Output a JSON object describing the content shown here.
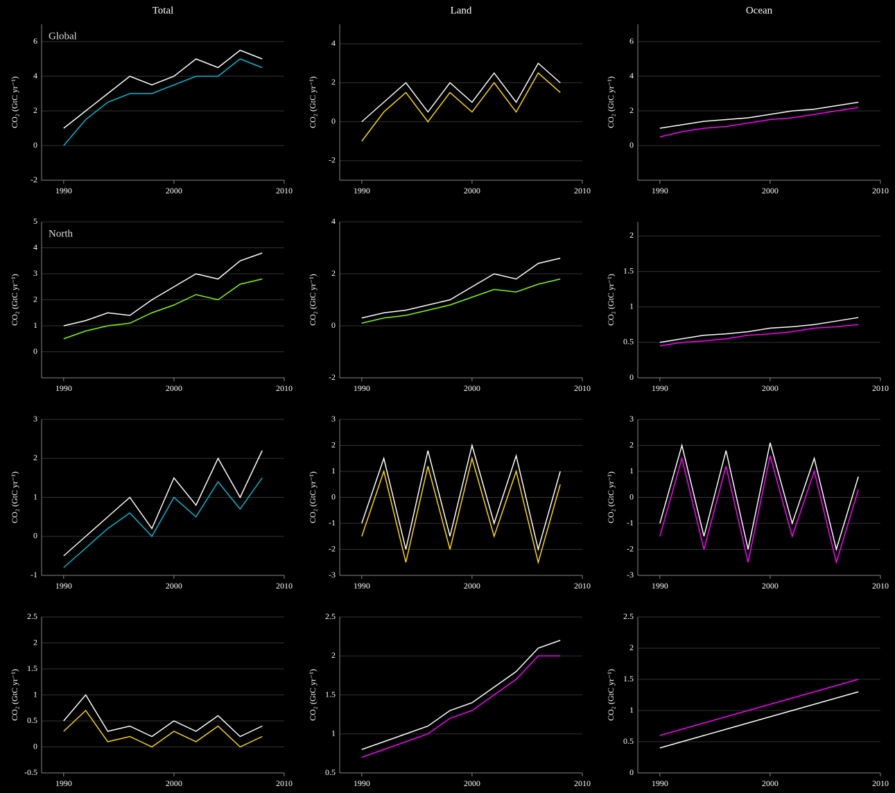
{
  "column_titles": [
    "Total",
    "Land",
    "Ocean"
  ],
  "row_labels": [
    "Global",
    "North"
  ],
  "chart_data": [
    {
      "type": "line",
      "ylabel": "CO₂ (GtC yr⁻¹)",
      "x": [
        1990,
        1992,
        1994,
        1996,
        1998,
        2000,
        2002,
        2004,
        2006,
        2008
      ],
      "xlim": [
        1988,
        2010
      ],
      "xticks": [
        1990,
        2000,
        2010
      ],
      "ylim": [
        -2,
        7
      ],
      "yticks": [
        -2,
        0,
        2,
        4,
        6
      ],
      "series": [
        {
          "color": "#ffffff",
          "values": [
            1,
            2,
            3,
            4,
            3.5,
            4,
            5,
            4.5,
            5.5,
            5
          ]
        },
        {
          "color": "#00bcd4",
          "values": [
            0,
            1.5,
            2.5,
            3,
            3,
            3.5,
            4,
            4,
            5,
            4.5
          ]
        }
      ]
    },
    {
      "type": "line",
      "ylabel": "CO₂ (GtC yr⁻¹)",
      "x": [
        1990,
        1992,
        1994,
        1996,
        1998,
        2000,
        2002,
        2004,
        2006,
        2008
      ],
      "xlim": [
        1988,
        2010
      ],
      "xticks": [
        1990,
        2000,
        2010
      ],
      "ylim": [
        -3,
        5
      ],
      "yticks": [
        -2,
        0,
        2,
        4
      ],
      "series": [
        {
          "color": "#ffffff",
          "values": [
            0,
            1,
            2,
            0.5,
            2,
            1,
            2.5,
            1,
            3,
            2
          ]
        },
        {
          "color": "#ffd700",
          "values": [
            -1,
            0.5,
            1.5,
            0,
            1.5,
            0.5,
            2,
            0.5,
            2.5,
            1.5
          ]
        }
      ]
    },
    {
      "type": "line",
      "ylabel": "CO₂ (GtC yr⁻¹)",
      "x": [
        1990,
        1992,
        1994,
        1996,
        1998,
        2000,
        2002,
        2004,
        2006,
        2008
      ],
      "xlim": [
        1988,
        2010
      ],
      "xticks": [
        1990,
        2000,
        2010
      ],
      "ylim": [
        -2,
        7
      ],
      "yticks": [
        0,
        2,
        4,
        6
      ],
      "series": [
        {
          "color": "#ffffff",
          "values": [
            1,
            1.2,
            1.4,
            1.5,
            1.6,
            1.8,
            2,
            2.1,
            2.3,
            2.5
          ]
        },
        {
          "color": "#ff00ff",
          "values": [
            0.5,
            0.8,
            1,
            1.1,
            1.3,
            1.5,
            1.6,
            1.8,
            2,
            2.2
          ]
        }
      ]
    },
    {
      "type": "line",
      "ylabel": "CO₂ (GtC yr⁻¹)",
      "x": [
        1990,
        1992,
        1994,
        1996,
        1998,
        2000,
        2002,
        2004,
        2006,
        2008
      ],
      "xlim": [
        1988,
        2010
      ],
      "xticks": [
        1990,
        2000,
        2010
      ],
      "ylim": [
        -1,
        5
      ],
      "yticks": [
        0,
        1,
        2,
        3,
        4,
        5
      ],
      "series": [
        {
          "color": "#ffffff",
          "values": [
            1,
            1.2,
            1.5,
            1.4,
            2,
            2.5,
            3,
            2.8,
            3.5,
            3.8
          ]
        },
        {
          "color": "#7fff00",
          "values": [
            0.5,
            0.8,
            1,
            1.1,
            1.5,
            1.8,
            2.2,
            2,
            2.6,
            2.8
          ]
        }
      ]
    },
    {
      "type": "line",
      "ylabel": "CO₂ (GtC yr⁻¹)",
      "x": [
        1990,
        1992,
        1994,
        1996,
        1998,
        2000,
        2002,
        2004,
        2006,
        2008
      ],
      "xlim": [
        1988,
        2010
      ],
      "xticks": [
        1990,
        2000,
        2010
      ],
      "ylim": [
        -2,
        4
      ],
      "yticks": [
        -2,
        0,
        2,
        4
      ],
      "series": [
        {
          "color": "#ffffff",
          "values": [
            0.3,
            0.5,
            0.6,
            0.8,
            1,
            1.5,
            2,
            1.8,
            2.4,
            2.6
          ]
        },
        {
          "color": "#7fff00",
          "values": [
            0.1,
            0.3,
            0.4,
            0.6,
            0.8,
            1.1,
            1.4,
            1.3,
            1.6,
            1.8
          ]
        }
      ]
    },
    {
      "type": "line",
      "ylabel": "CO₂ (GtC yr⁻¹)",
      "x": [
        1990,
        1992,
        1994,
        1996,
        1998,
        2000,
        2002,
        2004,
        2006,
        2008
      ],
      "xlim": [
        1988,
        2010
      ],
      "xticks": [
        1990,
        2000,
        2010
      ],
      "ylim": [
        0,
        2.2
      ],
      "yticks": [
        0,
        0.5,
        1,
        1.5,
        2
      ],
      "series": [
        {
          "color": "#ffffff",
          "values": [
            0.5,
            0.55,
            0.6,
            0.62,
            0.65,
            0.7,
            0.72,
            0.75,
            0.8,
            0.85
          ]
        },
        {
          "color": "#ff00ff",
          "values": [
            0.45,
            0.5,
            0.52,
            0.55,
            0.6,
            0.62,
            0.65,
            0.7,
            0.72,
            0.75
          ]
        }
      ]
    },
    {
      "type": "line",
      "ylabel": "CO₂ (GtC yr⁻¹)",
      "x": [
        1990,
        1992,
        1994,
        1996,
        1998,
        2000,
        2002,
        2004,
        2006,
        2008
      ],
      "xlim": [
        1988,
        2010
      ],
      "xticks": [
        1990,
        2000,
        2010
      ],
      "ylim": [
        -1,
        3
      ],
      "yticks": [
        -1,
        0,
        1,
        2,
        3
      ],
      "series": [
        {
          "color": "#ffffff",
          "values": [
            -0.5,
            0,
            0.5,
            1,
            0.2,
            1.5,
            0.8,
            2,
            1,
            2.2
          ]
        },
        {
          "color": "#00bcd4",
          "values": [
            -0.8,
            -0.3,
            0.2,
            0.6,
            0,
            1,
            0.5,
            1.4,
            0.7,
            1.5
          ]
        }
      ]
    },
    {
      "type": "line",
      "ylabel": "CO₂ (GtC yr⁻¹)",
      "x": [
        1990,
        1992,
        1994,
        1996,
        1998,
        2000,
        2002,
        2004,
        2006,
        2008
      ],
      "xlim": [
        1988,
        2010
      ],
      "xticks": [
        1990,
        2000,
        2010
      ],
      "ylim": [
        -3,
        3
      ],
      "yticks": [
        -3,
        -2,
        -1,
        0,
        1,
        2,
        3
      ],
      "series": [
        {
          "color": "#ffffff",
          "values": [
            -1,
            1.5,
            -2,
            1.8,
            -1.5,
            2,
            -1,
            1.6,
            -2,
            1
          ]
        },
        {
          "color": "#ffd700",
          "values": [
            -1.5,
            1,
            -2.5,
            1.2,
            -2,
            1.5,
            -1.5,
            1,
            -2.5,
            0.5
          ]
        }
      ]
    },
    {
      "type": "line",
      "ylabel": "CO₂ (GtC yr⁻¹)",
      "x": [
        1990,
        1992,
        1994,
        1996,
        1998,
        2000,
        2002,
        2004,
        2006,
        2008
      ],
      "xlim": [
        1988,
        2010
      ],
      "xticks": [
        1990,
        2000,
        2010
      ],
      "ylim": [
        -3,
        3
      ],
      "yticks": [
        -3,
        -2,
        -1,
        0,
        1,
        2,
        3
      ],
      "series": [
        {
          "color": "#ffffff",
          "values": [
            -1,
            2,
            -1.5,
            1.8,
            -2,
            2.1,
            -1,
            1.5,
            -2,
            0.8
          ]
        },
        {
          "color": "#ff00ff",
          "values": [
            -1.5,
            1.5,
            -2,
            1.2,
            -2.5,
            1.6,
            -1.5,
            1,
            -2.5,
            0.3
          ]
        }
      ]
    },
    {
      "type": "line",
      "ylabel": "CO₂ (GtC yr⁻¹)",
      "x": [
        1990,
        1992,
        1994,
        1996,
        1998,
        2000,
        2002,
        2004,
        2006,
        2008
      ],
      "xlim": [
        1988,
        2010
      ],
      "xticks": [
        1990,
        2000,
        2010
      ],
      "ylim": [
        -0.5,
        2.5
      ],
      "yticks": [
        -0.5,
        0,
        0.5,
        1,
        1.5,
        2,
        2.5
      ],
      "series": [
        {
          "color": "#ffffff",
          "values": [
            0.5,
            1,
            0.3,
            0.4,
            0.2,
            0.5,
            0.3,
            0.6,
            0.2,
            0.4
          ]
        },
        {
          "color": "#ffd700",
          "values": [
            0.3,
            0.7,
            0.1,
            0.2,
            0,
            0.3,
            0.1,
            0.4,
            0,
            0.2
          ]
        }
      ]
    },
    {
      "type": "line",
      "ylabel": "CO₂ (GtC yr⁻¹)",
      "x": [
        1990,
        1992,
        1994,
        1996,
        1998,
        2000,
        2002,
        2004,
        2006,
        2008
      ],
      "xlim": [
        1988,
        2010
      ],
      "xticks": [
        1990,
        2000,
        2010
      ],
      "ylim": [
        0.5,
        2.5
      ],
      "yticks": [
        0.5,
        1,
        1.5,
        2,
        2.5
      ],
      "series": [
        {
          "color": "#ffffff",
          "values": [
            0.8,
            0.9,
            1,
            1.1,
            1.3,
            1.4,
            1.6,
            1.8,
            2.1,
            2.2
          ]
        },
        {
          "color": "#ff00ff",
          "values": [
            0.7,
            0.8,
            0.9,
            1,
            1.2,
            1.3,
            1.5,
            1.7,
            2,
            2
          ]
        }
      ]
    },
    {
      "type": "line",
      "ylabel": "CO₂ (GtC yr⁻¹)",
      "x": [
        1990,
        1992,
        1994,
        1996,
        1998,
        2000,
        2002,
        2004,
        2006,
        2008
      ],
      "xlim": [
        1988,
        2010
      ],
      "xticks": [
        1990,
        2000,
        2010
      ],
      "ylim": [
        0,
        2.5
      ],
      "yticks": [
        0,
        0.5,
        1,
        1.5,
        2,
        2.5
      ],
      "series": [
        {
          "color": "#ffffff",
          "values": [
            0.4,
            0.5,
            0.6,
            0.7,
            0.8,
            0.9,
            1,
            1.1,
            1.2,
            1.3
          ]
        },
        {
          "color": "#ff00ff",
          "values": [
            0.6,
            0.7,
            0.8,
            0.9,
            1,
            1.1,
            1.2,
            1.3,
            1.4,
            1.5
          ]
        }
      ]
    }
  ]
}
